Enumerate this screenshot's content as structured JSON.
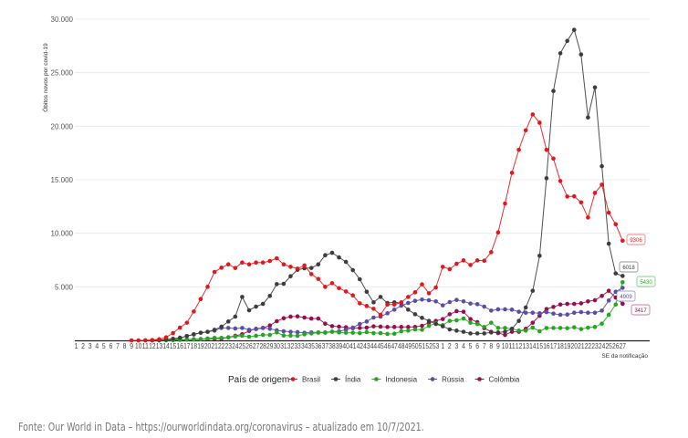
{
  "chart_data": {
    "type": "line",
    "title": "",
    "ylabel": "Óbitos novos por covid-19",
    "xlabel": "SE da notificação",
    "ylim": [
      0,
      30000
    ],
    "yticks": [
      5000,
      10000,
      15000,
      20000,
      25000,
      30000
    ],
    "ytick_labels": [
      "5.000",
      "10.000",
      "15.000",
      "20.000",
      "25.000",
      "30.000"
    ],
    "grid": true,
    "x_weeks_2020": 53,
    "x_weeks_2021": 27,
    "legend": {
      "title": "País de origem",
      "position": "bottom"
    },
    "series": [
      {
        "name": "Brasil",
        "color": "#e3161c",
        "end_label": "9306",
        "values": [
          null,
          null,
          null,
          null,
          null,
          null,
          null,
          null,
          0,
          0,
          10,
          30,
          100,
          280,
          680,
          1190,
          1650,
          2700,
          3860,
          5000,
          6390,
          6790,
          7100,
          6760,
          7270,
          7100,
          7270,
          7270,
          7410,
          7670,
          7100,
          6870,
          6700,
          7000,
          6190,
          5740,
          5000,
          5340,
          4880,
          4570,
          4200,
          3460,
          3210,
          2950,
          2390,
          3350,
          3350,
          3550,
          4060,
          4490,
          5230,
          4400,
          4940,
          6870,
          6650,
          7160,
          7470,
          7040,
          7470,
          7440,
          8240,
          10080,
          12780,
          15650,
          17800,
          19620,
          21100,
          20330,
          17800,
          16980,
          14880,
          13430,
          13460,
          12890,
          11470,
          13770,
          14540,
          11930,
          10850,
          9306
        ]
      },
      {
        "name": "Índia",
        "color": "#3d3d3d",
        "end_label": "6018",
        "values": [
          null,
          null,
          null,
          null,
          null,
          null,
          null,
          null,
          null,
          null,
          null,
          0,
          30,
          80,
          150,
          250,
          400,
          550,
          710,
          800,
          990,
          1280,
          1760,
          2220,
          4060,
          2810,
          3150,
          3410,
          4150,
          5250,
          5280,
          5990,
          6590,
          6730,
          6760,
          7100,
          7950,
          8180,
          7750,
          7330,
          6560,
          5710,
          4540,
          3550,
          4060,
          3490,
          3550,
          3490,
          2870,
          2440,
          2100,
          1820,
          1530,
          1310,
          1020,
          910,
          800,
          650,
          650,
          650,
          740,
          740,
          800,
          1080,
          1820,
          3070,
          4630,
          7900,
          15140,
          23290,
          26810,
          27970,
          29000,
          26700,
          20820,
          23630,
          16270,
          9030,
          6250,
          6018
        ]
      },
      {
        "name": "Indonesia",
        "color": "#22a81e",
        "end_label": "5430",
        "values": [
          null,
          null,
          null,
          null,
          null,
          null,
          null,
          null,
          null,
          null,
          0,
          0,
          5,
          10,
          20,
          40,
          60,
          80,
          120,
          180,
          230,
          230,
          280,
          370,
          430,
          340,
          430,
          510,
          510,
          740,
          450,
          450,
          430,
          570,
          650,
          710,
          710,
          800,
          740,
          710,
          710,
          680,
          770,
          680,
          680,
          600,
          620,
          850,
          910,
          1020,
          990,
          1360,
          1590,
          1420,
          1820,
          1870,
          2040,
          1650,
          1530,
          1250,
          1650,
          1160,
          1160,
          1080,
          910,
          910,
          1190,
          850,
          1160,
          1160,
          1160,
          1140,
          1220,
          1050,
          1190,
          1250,
          1560,
          2390,
          3350,
          5430
        ]
      },
      {
        "name": "Rússia",
        "color": "#5a4ca8",
        "end_label": "4909",
        "values": [
          null,
          null,
          null,
          null,
          null,
          null,
          null,
          null,
          null,
          null,
          null,
          null,
          null,
          50,
          100,
          200,
          400,
          570,
          710,
          800,
          910,
          1160,
          1160,
          1110,
          1160,
          990,
          1050,
          1160,
          1080,
          940,
          850,
          800,
          770,
          710,
          740,
          740,
          740,
          820,
          850,
          990,
          1190,
          1530,
          1760,
          2130,
          2220,
          2530,
          2870,
          3240,
          3490,
          3690,
          3810,
          3750,
          3640,
          3270,
          3580,
          3780,
          3640,
          3440,
          3380,
          3150,
          2780,
          2900,
          2900,
          2870,
          2670,
          2580,
          2580,
          2530,
          2640,
          2500,
          2390,
          2410,
          2580,
          2640,
          2580,
          2580,
          2780,
          3720,
          4540,
          4909
        ]
      },
      {
        "name": "Colômbia",
        "color": "#9b0c4c",
        "end_label": "3417",
        "values": [
          null,
          null,
          null,
          null,
          null,
          null,
          null,
          null,
          null,
          null,
          null,
          null,
          0,
          20,
          40,
          60,
          80,
          100,
          120,
          140,
          160,
          170,
          280,
          430,
          570,
          880,
          1080,
          1160,
          1390,
          1790,
          2070,
          2220,
          2240,
          2130,
          2040,
          2040,
          1560,
          1330,
          1280,
          1220,
          1140,
          1160,
          1190,
          1310,
          1280,
          1250,
          1250,
          1250,
          1250,
          1250,
          1360,
          1650,
          1820,
          1990,
          2440,
          2730,
          2670,
          1990,
          1700,
          1140,
          800,
          680,
          510,
          800,
          800,
          1080,
          1650,
          2300,
          2930,
          3120,
          3350,
          3410,
          3410,
          3460,
          3640,
          3750,
          4150,
          4630,
          4000,
          3417
        ]
      }
    ]
  },
  "source": "Fonte: Our World in Data – https://ourworldindata.org/coronavirus – atualizado em 10/7/2021."
}
